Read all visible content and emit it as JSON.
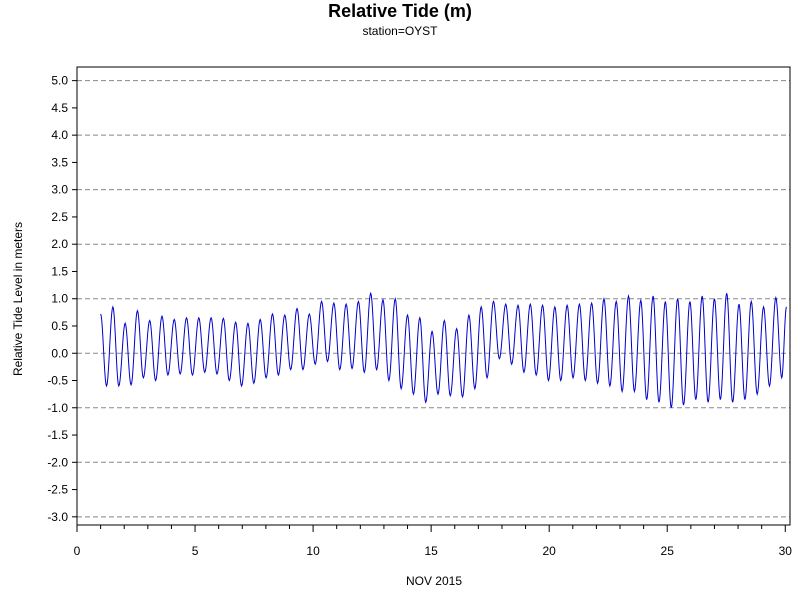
{
  "chart_data": {
    "type": "line",
    "title": "Relative Tide (m)",
    "subtitle": "station=OYST",
    "xlabel": "NOV 2015",
    "ylabel": "Relative Tide Level in meters",
    "xlim": [
      0,
      30.2
    ],
    "ylim": [
      -3.15,
      5.25
    ],
    "x_ticks": [
      0,
      5,
      10,
      15,
      20,
      25,
      30
    ],
    "x_tick_labels": [
      "0",
      "5",
      "10",
      "15",
      "20",
      "25",
      "30"
    ],
    "y_ticks": [
      5.0,
      4.5,
      4.0,
      3.5,
      3.0,
      2.5,
      2.0,
      1.5,
      1.0,
      0.5,
      0.0,
      -0.5,
      -1.0,
      -1.5,
      -2.0,
      -2.5,
      -3.0
    ],
    "y_tick_labels": [
      "5.0",
      "4.5",
      "4.0",
      "3.5",
      "3.0",
      "2.5",
      "2.0",
      "1.5",
      "1.0",
      "0.5",
      "0.0",
      "-0.5",
      "-1.0",
      "-1.5",
      "-2.0",
      "-2.5",
      "-3.0"
    ],
    "grid": {
      "y_dashed_at": [
        5.0,
        4.0,
        3.0,
        2.0,
        1.0,
        0.0,
        -1.0,
        -2.0,
        -3.0
      ]
    },
    "line_color": "#0000cc",
    "series": [
      {
        "x": [
          1.0,
          1.25,
          1.52,
          1.77,
          2.04,
          2.29,
          2.56,
          2.81,
          3.08,
          3.33,
          3.6,
          3.85,
          4.12,
          4.37,
          4.64,
          4.89,
          5.16,
          5.41,
          5.68,
          5.93,
          6.2,
          6.45,
          6.72,
          6.97,
          7.24,
          7.49,
          7.76,
          8.01,
          8.28,
          8.53,
          8.8,
          9.05,
          9.32,
          9.57,
          9.84,
          10.09,
          10.36,
          10.61,
          10.88,
          11.13,
          11.4,
          11.65,
          11.92,
          12.17,
          12.44,
          12.69,
          12.96,
          13.21,
          13.48,
          13.73,
          14.0,
          14.25,
          14.52,
          14.77,
          15.04,
          15.29,
          15.56,
          15.81,
          16.08,
          16.33,
          16.6,
          16.85,
          17.12,
          17.37,
          17.64,
          17.89,
          18.16,
          18.41,
          18.68,
          18.93,
          19.2,
          19.45,
          19.72,
          19.97,
          20.24,
          20.49,
          20.76,
          21.01,
          21.28,
          21.53,
          21.8,
          22.05,
          22.32,
          22.57,
          22.84,
          23.09,
          23.36,
          23.61,
          23.88,
          24.13,
          24.4,
          24.65,
          24.92,
          25.17,
          25.44,
          25.69,
          25.96,
          26.21,
          26.48,
          26.73,
          27.0,
          27.25,
          27.52,
          27.77,
          28.04,
          28.29,
          28.56,
          28.81,
          29.08,
          29.33,
          29.6,
          29.85,
          30.05
        ],
        "y": [
          0.72,
          -0.6,
          0.85,
          -0.6,
          0.55,
          -0.58,
          0.78,
          -0.45,
          0.6,
          -0.5,
          0.68,
          -0.4,
          0.62,
          -0.38,
          0.65,
          -0.4,
          0.65,
          -0.35,
          0.65,
          -0.38,
          0.64,
          -0.5,
          0.57,
          -0.6,
          0.55,
          -0.55,
          0.62,
          -0.45,
          0.72,
          -0.4,
          0.7,
          -0.3,
          0.82,
          -0.3,
          0.72,
          -0.2,
          0.95,
          -0.15,
          0.92,
          -0.3,
          0.9,
          -0.28,
          0.95,
          -0.35,
          1.1,
          -0.3,
          0.98,
          -0.5,
          1.0,
          -0.65,
          0.7,
          -0.75,
          0.65,
          -0.9,
          0.4,
          -0.75,
          0.6,
          -0.78,
          0.45,
          -0.8,
          0.7,
          -0.65,
          0.85,
          -0.45,
          0.95,
          -0.1,
          0.9,
          -0.2,
          0.88,
          -0.35,
          0.9,
          -0.4,
          0.88,
          -0.5,
          0.85,
          -0.5,
          0.88,
          -0.45,
          0.9,
          -0.5,
          0.92,
          -0.55,
          1.0,
          -0.6,
          0.95,
          -0.7,
          1.05,
          -0.7,
          0.97,
          -0.85,
          1.05,
          -0.9,
          0.95,
          -1.0,
          1.0,
          -0.95,
          0.95,
          -0.85,
          1.05,
          -0.9,
          1.0,
          -0.85,
          1.1,
          -0.9,
          0.9,
          -0.85,
          0.95,
          -0.75,
          0.85,
          -0.6,
          1.02,
          -0.45,
          0.85
        ]
      }
    ]
  }
}
